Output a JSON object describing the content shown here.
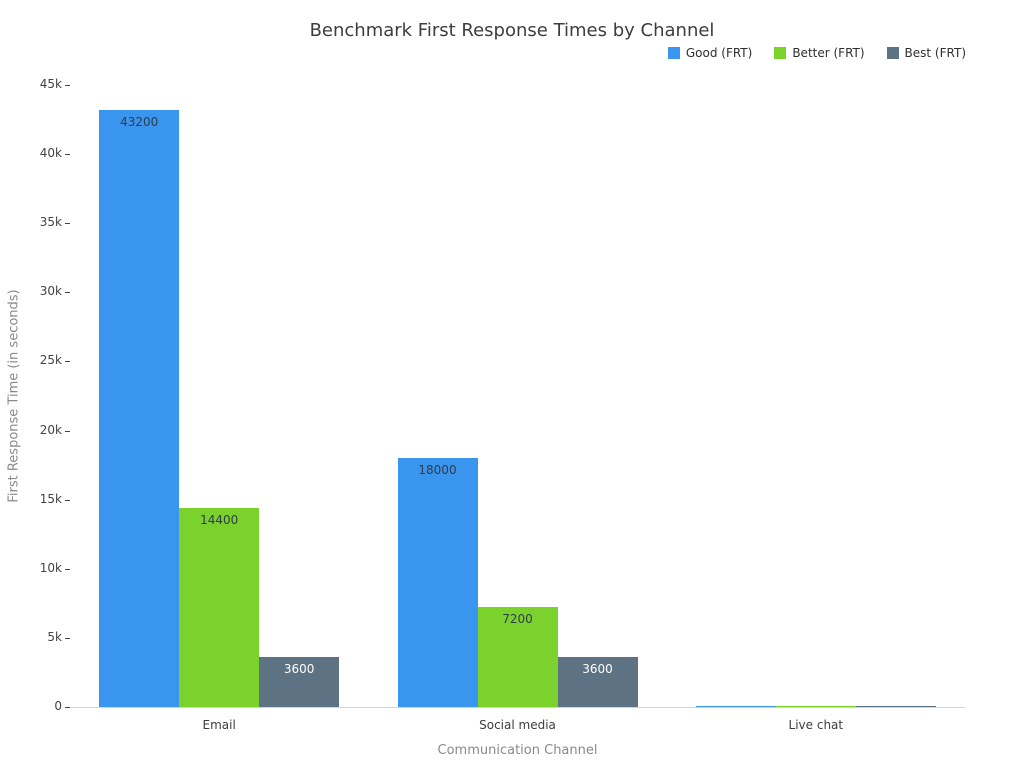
{
  "chart_data": {
    "type": "bar",
    "title": "Benchmark First Response Times by Channel",
    "xlabel": "Communication Channel",
    "ylabel": "First Response Time (in seconds)",
    "categories": [
      "Email",
      "Social media",
      "Live chat"
    ],
    "series": [
      {
        "name": "Good (FRT)",
        "color": "#3a95ef",
        "label_color": "#2e3d49",
        "values": [
          43200,
          18000,
          60
        ],
        "value_labels": [
          "43200",
          "18000",
          ""
        ]
      },
      {
        "name": "Better (FRT)",
        "color": "#7bd22c",
        "label_color": "#2e3d49",
        "values": [
          14400,
          7200,
          30
        ],
        "value_labels": [
          "14400",
          "7200",
          ""
        ]
      },
      {
        "name": "Best (FRT)",
        "color": "#5d7383",
        "label_color": "#ffffff",
        "values": [
          3600,
          3600,
          15
        ],
        "value_labels": [
          "3600",
          "3600",
          ""
        ]
      }
    ],
    "ylim": [
      0,
      45000
    ],
    "ytick_values": [
      0,
      5000,
      10000,
      15000,
      20000,
      25000,
      30000,
      35000,
      40000,
      45000
    ],
    "yticks": [
      "0",
      "5k",
      "10k",
      "15k",
      "20k",
      "25k",
      "30k",
      "35k",
      "40k",
      "45k"
    ],
    "legend_position": "top-right",
    "grid": false
  }
}
